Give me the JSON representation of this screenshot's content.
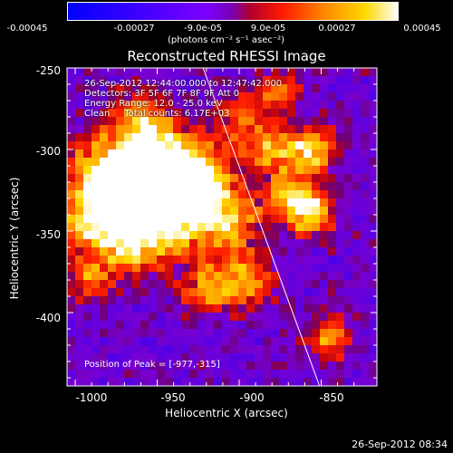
{
  "colorbar": {
    "tick_labels": [
      "-0.00045",
      "-0.00027",
      "-9.0e-05",
      "9.0e-05",
      "0.00027",
      "0.00045"
    ],
    "unit_label": "(photons cm⁻² s⁻¹ asec⁻²)"
  },
  "info": {
    "time_range": "26-Sep-2012 12:44:00.000 to 12:47:42.000",
    "detectors": "Detectors: 3F 5F 6F 7F 8F 9F Att 0",
    "energy": "Energy Range: 12.0 - 25.0 keV",
    "clean": "Clean     Total counts: 6.17E+03",
    "peak": "Position of Peak = [-977,-315]"
  },
  "footer": {
    "date": "26-Sep-2012 08:34"
  },
  "chart_data": {
    "type": "heatmap",
    "title": "Reconstructed RHESSI Image",
    "xlabel": "Heliocentric X (arcsec)",
    "ylabel": "Heliocentric Y (arcsec)",
    "xlim": [
      -1005,
      -816
    ],
    "ylim": [
      -445,
      -250
    ],
    "xticks": [
      -1000,
      -950,
      -900,
      -850
    ],
    "yticks": [
      -250,
      -300,
      -350,
      -400
    ],
    "colorbar_range": [
      -0.00045,
      0.00045
    ],
    "peak_position": [
      -977,
      -315
    ],
    "limb_line": [
      [
        -922,
        -250
      ],
      [
        -851,
        -445
      ]
    ],
    "colors": {
      "low": "#0000ff",
      "zero": "#7a00ff",
      "high": "#ffffff",
      "line": "#ffffff"
    }
  }
}
